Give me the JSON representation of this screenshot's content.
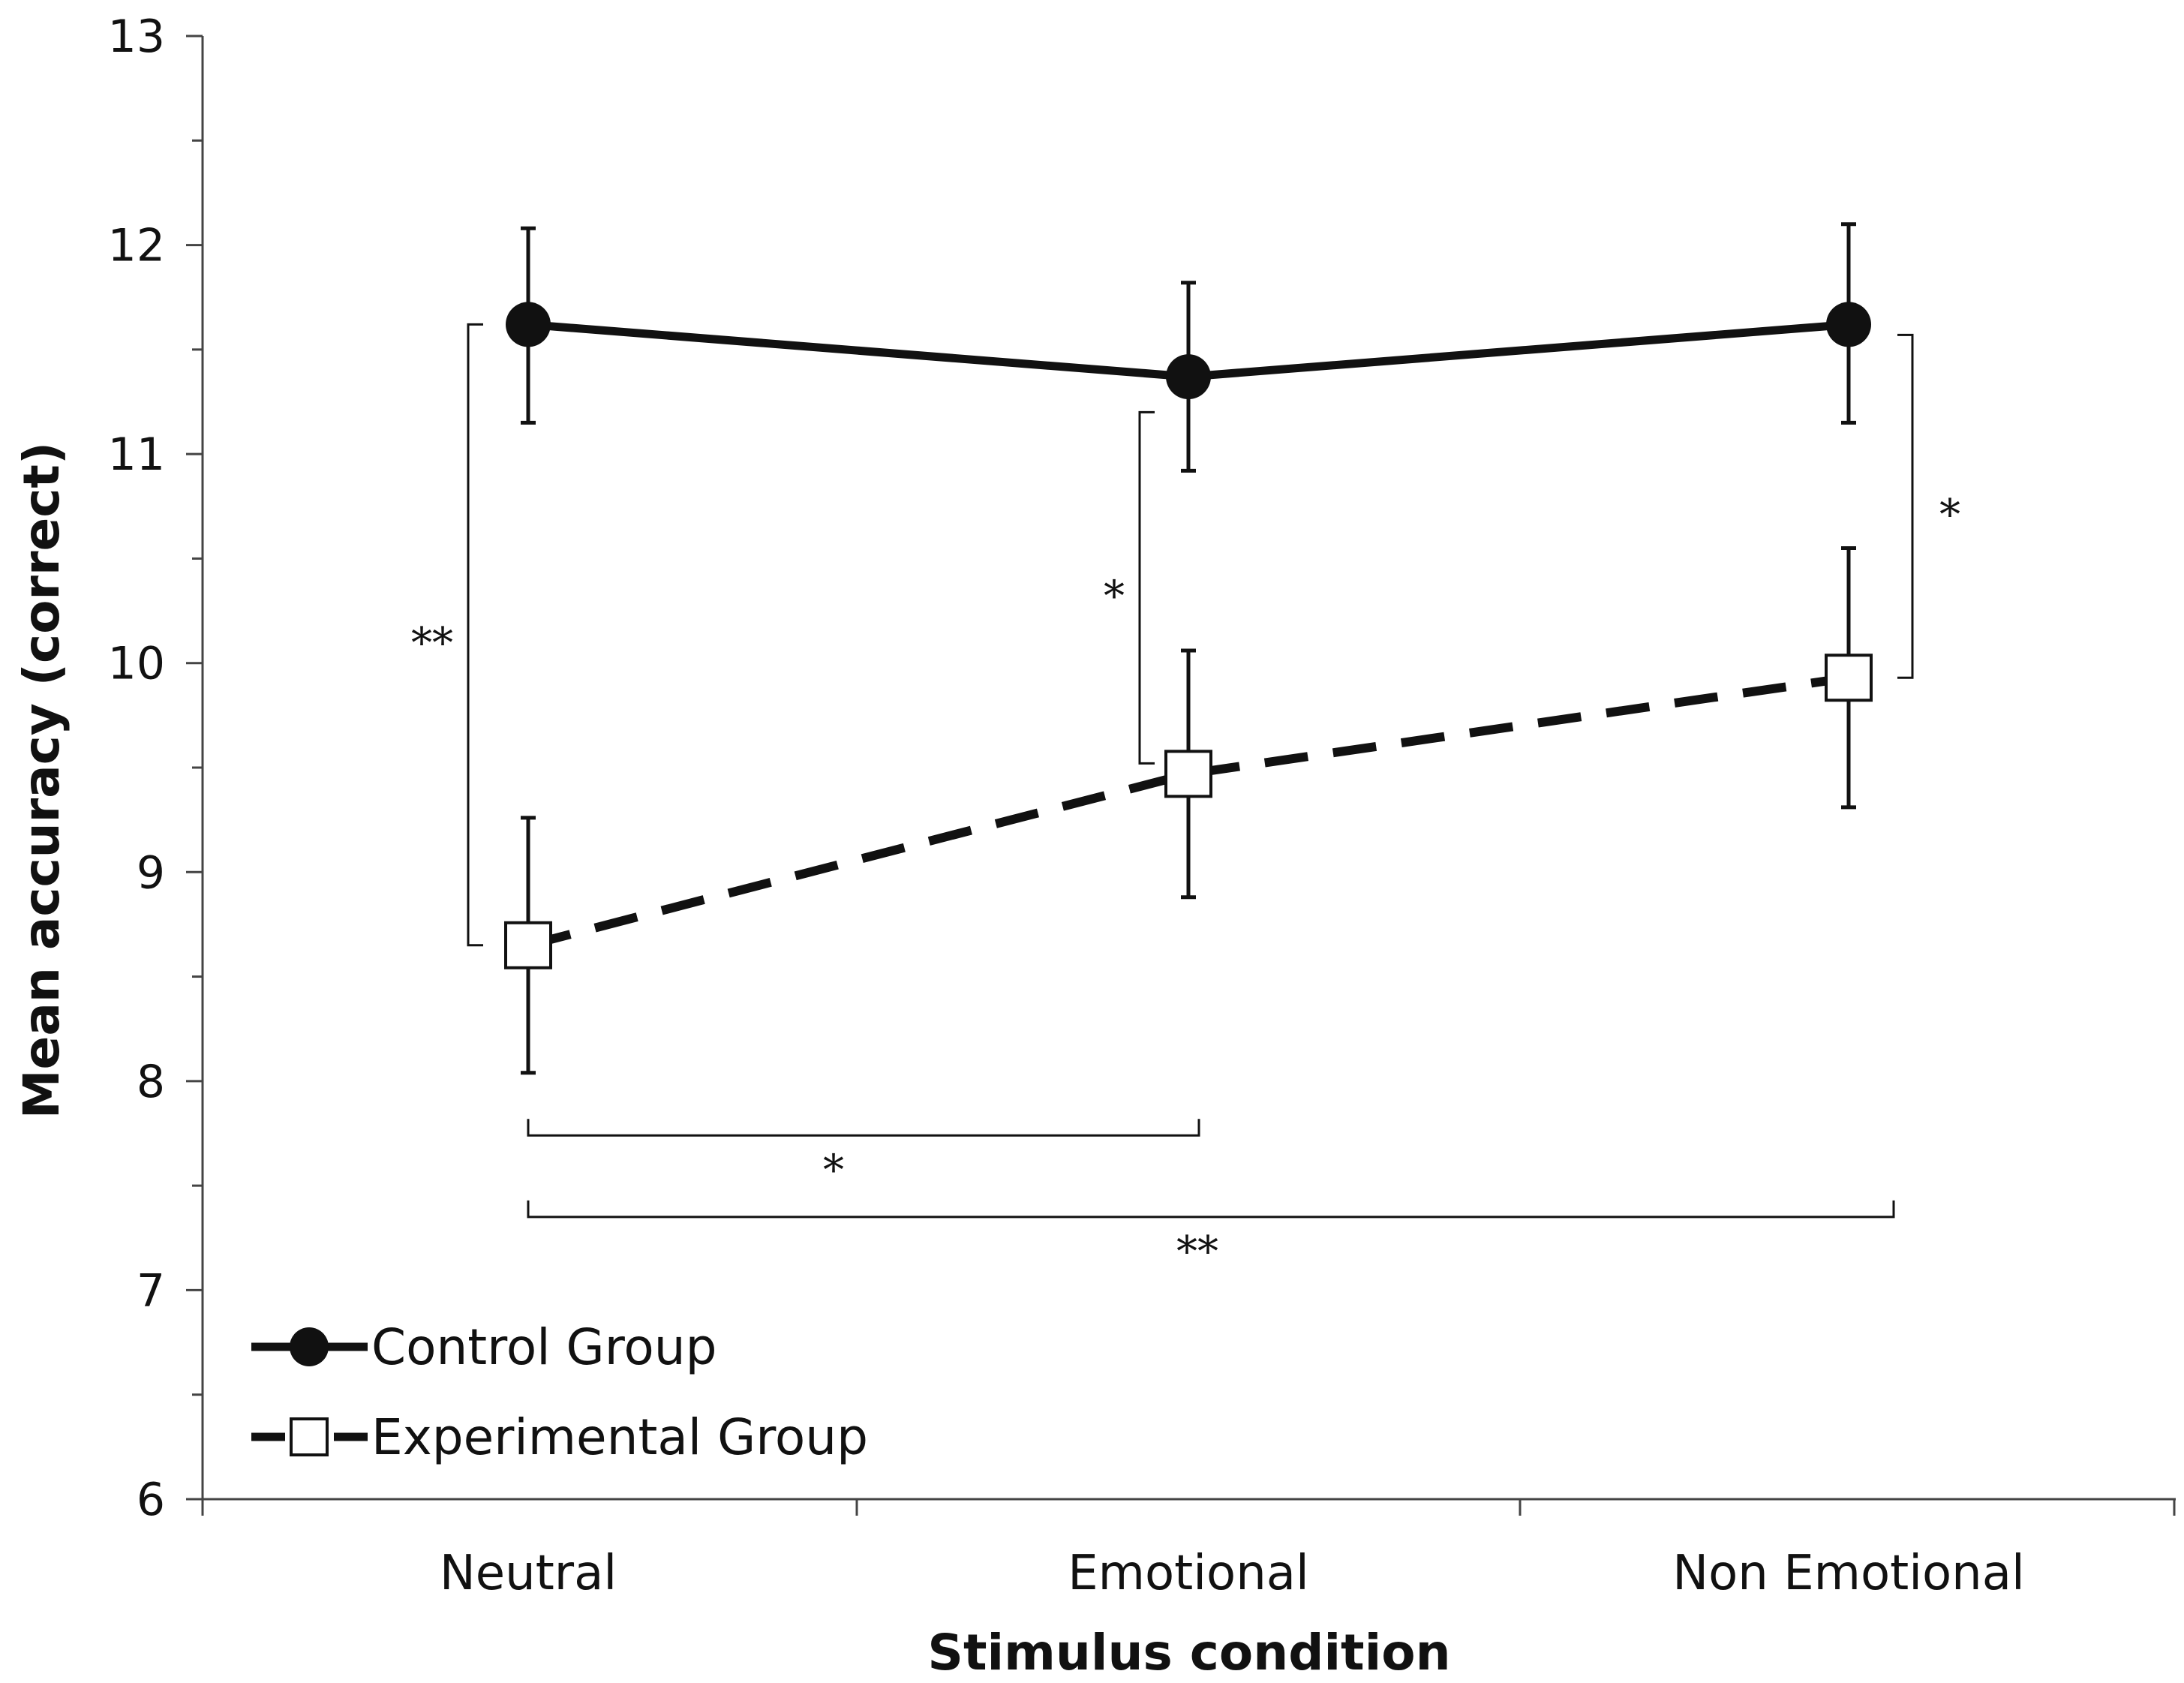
{
  "chart_data": {
    "type": "line",
    "title": "",
    "xlabel": "Stimulus condition",
    "ylabel": "Mean accuracy (correct)",
    "ylim": [
      6,
      13
    ],
    "yticks": [
      "6",
      "7",
      "8",
      "9",
      "10",
      "11",
      "12",
      "13"
    ],
    "categories": [
      "Neutral",
      "Emotional",
      "Non Emotional"
    ],
    "series": [
      {
        "name": "Control Group",
        "values": [
          11.62,
          11.37,
          11.62
        ],
        "errors": [
          [
            11.15,
            12.08
          ],
          [
            10.92,
            11.82
          ],
          [
            11.15,
            12.1
          ]
        ],
        "marker": "filled-circle",
        "line": "solid"
      },
      {
        "name": "Experimental Group",
        "values": [
          8.65,
          9.47,
          9.93
        ],
        "errors": [
          [
            8.04,
            9.26
          ],
          [
            8.88,
            10.06
          ],
          [
            9.31,
            10.55
          ]
        ],
        "marker": "open-square",
        "line": "dashed"
      }
    ],
    "significance": [
      {
        "type": "vertical",
        "category": "Neutral",
        "from": 8.65,
        "to": 11.62,
        "label": "**"
      },
      {
        "type": "vertical",
        "category": "Emotional",
        "from": 9.52,
        "to": 11.2,
        "label": "*"
      },
      {
        "type": "vertical",
        "category": "Non Emotional",
        "from": 9.93,
        "to": 11.57,
        "label": "*"
      },
      {
        "type": "horizontal",
        "from": "Neutral",
        "to": "Emotional",
        "y": 7.74,
        "label": "*"
      },
      {
        "type": "horizontal",
        "from": "Neutral",
        "to": "Non Emotional",
        "y": 7.35,
        "label": "**"
      }
    ],
    "legend_position": "bottom-left",
    "colors": {
      "ink": "#111111",
      "background": "#ffffff",
      "marker_fill_open": "#ffffff"
    }
  }
}
